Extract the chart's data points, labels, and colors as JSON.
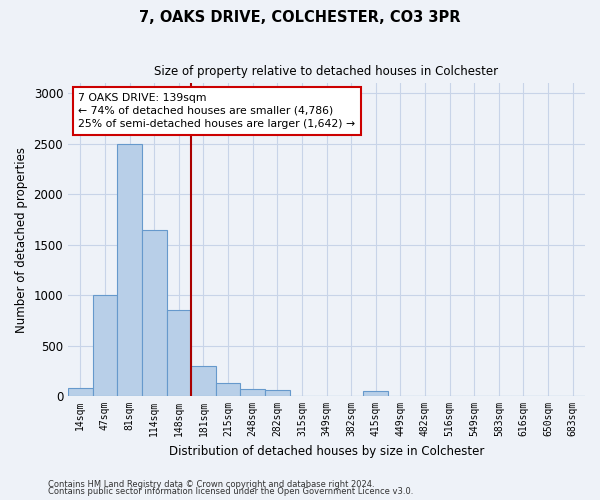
{
  "title1": "7, OAKS DRIVE, COLCHESTER, CO3 3PR",
  "title2": "Size of property relative to detached houses in Colchester",
  "xlabel": "Distribution of detached houses by size in Colchester",
  "ylabel": "Number of detached properties",
  "categories": [
    "14sqm",
    "47sqm",
    "81sqm",
    "114sqm",
    "148sqm",
    "181sqm",
    "215sqm",
    "248sqm",
    "282sqm",
    "315sqm",
    "349sqm",
    "382sqm",
    "415sqm",
    "449sqm",
    "482sqm",
    "516sqm",
    "549sqm",
    "583sqm",
    "616sqm",
    "650sqm",
    "683sqm"
  ],
  "values": [
    75,
    1000,
    2500,
    1650,
    850,
    300,
    130,
    70,
    60,
    0,
    0,
    0,
    50,
    0,
    0,
    0,
    0,
    0,
    0,
    0,
    0
  ],
  "bar_color": "#b8cfe8",
  "bar_edge_color": "#6699cc",
  "grid_color": "#c8d4e8",
  "vline_color": "#aa0000",
  "annotation_text": "7 OAKS DRIVE: 139sqm\n← 74% of detached houses are smaller (4,786)\n25% of semi-detached houses are larger (1,642) →",
  "annotation_box_color": "#ffffff",
  "annotation_box_edge": "#cc0000",
  "ylim": [
    0,
    3100
  ],
  "yticks": [
    0,
    500,
    1000,
    1500,
    2000,
    2500,
    3000
  ],
  "footnote1": "Contains HM Land Registry data © Crown copyright and database right 2024.",
  "footnote2": "Contains public sector information licensed under the Open Government Licence v3.0.",
  "background_color": "#eef2f8"
}
